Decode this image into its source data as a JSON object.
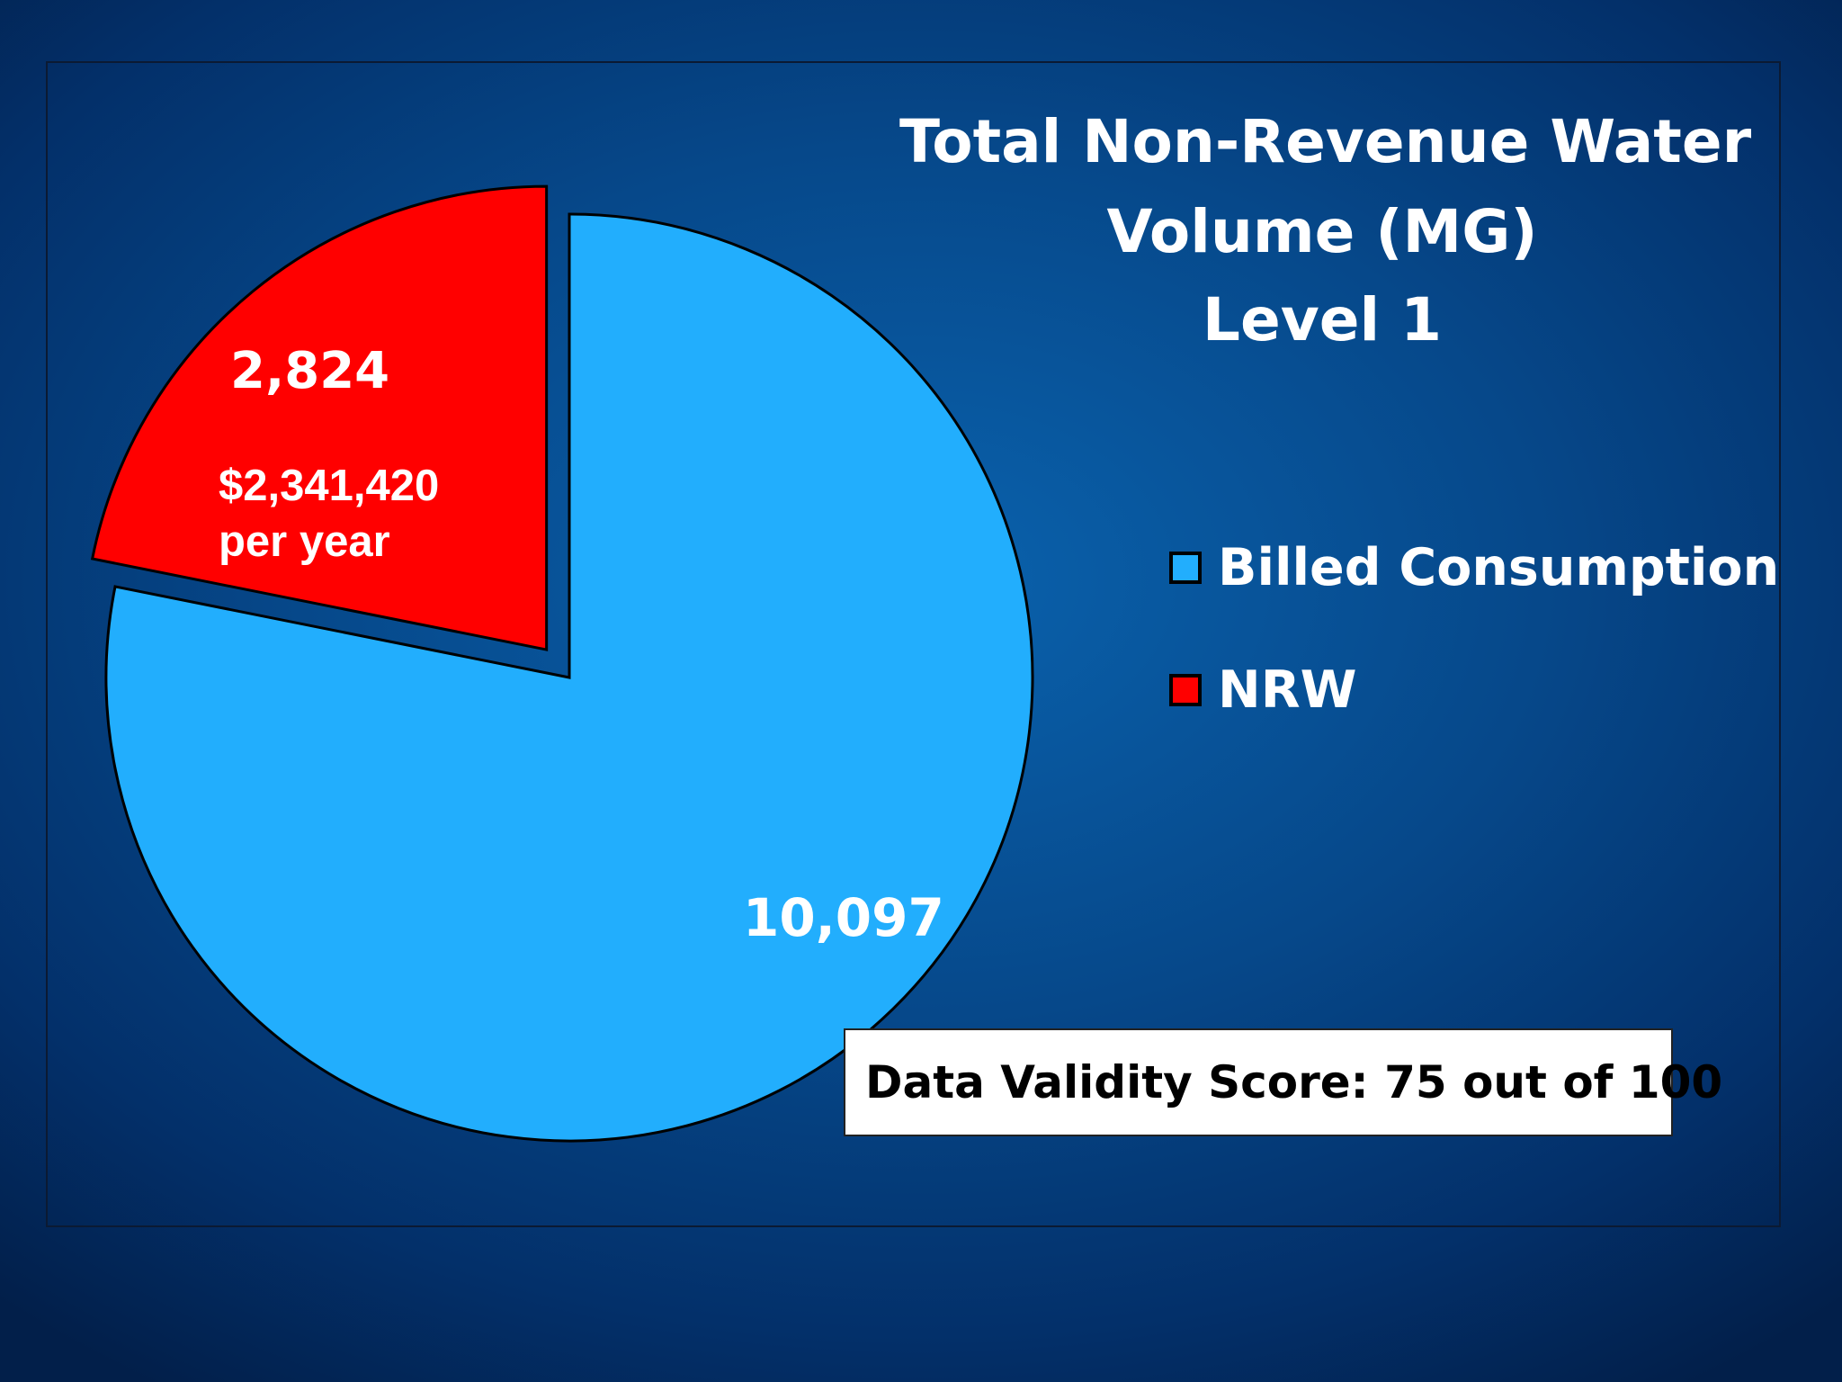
{
  "chart_data": {
    "type": "pie",
    "title": "Total Non-Revenue Water Volume (MG) Level 1",
    "title_lines": [
      "Total Non-Revenue Water",
      "Volume (MG)",
      "Level 1"
    ],
    "slices": [
      {
        "name": "Billed Consumption",
        "value": 10097,
        "label": "10,097",
        "color": "#22aefd",
        "exploded": false
      },
      {
        "name": "NRW",
        "value": 2824,
        "label": "2,824",
        "sub_label_lines": [
          "$2,341,420",
          "per year"
        ],
        "color": "#ff0000",
        "exploded": true
      }
    ],
    "legend": {
      "placement": "right",
      "entries": [
        "Billed Consumption",
        "NRW"
      ]
    }
  },
  "annotation": {
    "validity_text": "Data Validity Score: 75 out of 100"
  },
  "colors": {
    "billed": "#22aefd",
    "nrw": "#ff0000",
    "outline": "#000000",
    "text": "#ffffff"
  }
}
